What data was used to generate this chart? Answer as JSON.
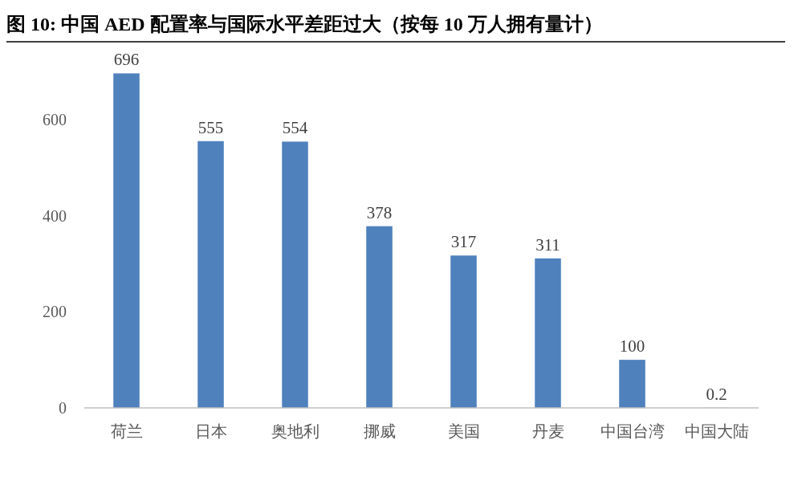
{
  "chart_data": {
    "type": "bar",
    "title": "图 10:  中国 AED 配置率与国际水平差距过大（按每 10 万人拥有量计）",
    "categories": [
      "荷兰",
      "日本",
      "奥地利",
      "挪威",
      "美国",
      "丹麦",
      "中国台湾",
      "中国大陆"
    ],
    "values": [
      696,
      555,
      554,
      378,
      317,
      311,
      100,
      0.2
    ],
    "color": "#4f81bd",
    "ylim": [
      0,
      700
    ],
    "yticks": [
      0,
      200,
      400,
      600
    ],
    "data_labels": true,
    "grid": false
  }
}
